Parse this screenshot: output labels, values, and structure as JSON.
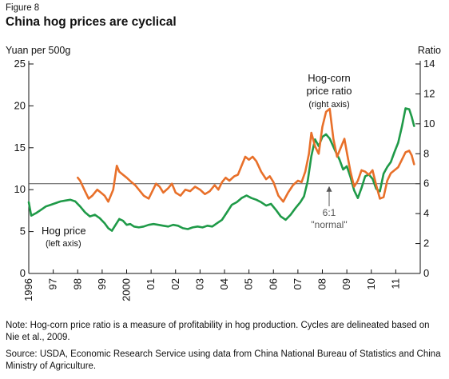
{
  "figure_label": "Figure 8",
  "title": "China hog prices are cyclical",
  "note": "Note: Hog-corn price ratio is a measure of profitability in hog production. Cycles are delineated based on Nie et al., 2009.",
  "source": "Source: USDA, Economic Research Service using data from China National Bureau of Statistics and China Ministry of Agriculture.",
  "colors": {
    "hog": "#1f9a48",
    "ratio": "#e8702a",
    "axis": "#111111",
    "ref": "#555555",
    "annotation": "#555555"
  },
  "chart_data": {
    "type": "line",
    "title": "China hog prices are cyclical",
    "ylabel_left": "Yuan per 500g",
    "ylabel_right": "Ratio",
    "ylim_left": [
      0,
      25
    ],
    "ylim_right": [
      0,
      14
    ],
    "yticks_left": [
      0,
      5,
      10,
      15,
      20,
      25
    ],
    "yticks_right": [
      0,
      2,
      4,
      6,
      8,
      10,
      12,
      14
    ],
    "xlim": [
      1996,
      2012
    ],
    "xticks": [
      {
        "x": 1996,
        "label": "1996"
      },
      {
        "x": 1997,
        "label": "97"
      },
      {
        "x": 1998,
        "label": "98"
      },
      {
        "x": 1999,
        "label": "99"
      },
      {
        "x": 2000,
        "label": "2000"
      },
      {
        "x": 2001,
        "label": "01"
      },
      {
        "x": 2002,
        "label": "02"
      },
      {
        "x": 2003,
        "label": "03"
      },
      {
        "x": 2004,
        "label": "04"
      },
      {
        "x": 2005,
        "label": "05"
      },
      {
        "x": 2006,
        "label": "06"
      },
      {
        "x": 2007,
        "label": "07"
      },
      {
        "x": 2008,
        "label": "08"
      },
      {
        "x": 2009,
        "label": "09"
      },
      {
        "x": 2010,
        "label": "10"
      },
      {
        "x": 2011,
        "label": "11"
      }
    ],
    "reference_line": {
      "axis": "right",
      "value": 6,
      "label": "6:1",
      "sublabel": "\"normal\""
    },
    "annotations": {
      "hog_label": "Hog price",
      "hog_sublabel": "(left axis)",
      "ratio_label_1": "Hog-corn",
      "ratio_label_2": "price ratio",
      "ratio_sublabel": "(right axis)"
    },
    "series": [
      {
        "name": "Hog price",
        "axis": "left",
        "points": [
          [
            1996.0,
            8.5
          ],
          [
            1996.1,
            6.9
          ],
          [
            1996.3,
            7.2
          ],
          [
            1996.5,
            7.6
          ],
          [
            1996.7,
            8.0
          ],
          [
            1996.9,
            8.2
          ],
          [
            1997.1,
            8.4
          ],
          [
            1997.3,
            8.6
          ],
          [
            1997.5,
            8.7
          ],
          [
            1997.7,
            8.8
          ],
          [
            1997.9,
            8.6
          ],
          [
            1998.1,
            8.0
          ],
          [
            1998.3,
            7.3
          ],
          [
            1998.5,
            6.8
          ],
          [
            1998.7,
            7.0
          ],
          [
            1998.9,
            6.6
          ],
          [
            1999.1,
            6.0
          ],
          [
            1999.25,
            5.4
          ],
          [
            1999.4,
            5.1
          ],
          [
            1999.55,
            5.8
          ],
          [
            1999.7,
            6.5
          ],
          [
            1999.85,
            6.3
          ],
          [
            2000.0,
            5.8
          ],
          [
            2000.15,
            5.9
          ],
          [
            2000.3,
            5.6
          ],
          [
            2000.5,
            5.5
          ],
          [
            2000.7,
            5.6
          ],
          [
            2000.9,
            5.8
          ],
          [
            2001.1,
            5.9
          ],
          [
            2001.3,
            5.8
          ],
          [
            2001.5,
            5.7
          ],
          [
            2001.7,
            5.6
          ],
          [
            2001.9,
            5.8
          ],
          [
            2002.1,
            5.7
          ],
          [
            2002.3,
            5.4
          ],
          [
            2002.5,
            5.3
          ],
          [
            2002.7,
            5.5
          ],
          [
            2002.9,
            5.6
          ],
          [
            2003.1,
            5.5
          ],
          [
            2003.3,
            5.7
          ],
          [
            2003.5,
            5.6
          ],
          [
            2003.7,
            6.0
          ],
          [
            2003.9,
            6.4
          ],
          [
            2004.1,
            7.3
          ],
          [
            2004.3,
            8.2
          ],
          [
            2004.5,
            8.5
          ],
          [
            2004.7,
            9.0
          ],
          [
            2004.9,
            9.3
          ],
          [
            2005.1,
            9.0
          ],
          [
            2005.3,
            8.8
          ],
          [
            2005.5,
            8.5
          ],
          [
            2005.7,
            8.1
          ],
          [
            2005.9,
            8.3
          ],
          [
            2006.1,
            7.6
          ],
          [
            2006.3,
            6.8
          ],
          [
            2006.5,
            6.4
          ],
          [
            2006.7,
            7.0
          ],
          [
            2006.9,
            7.8
          ],
          [
            2007.1,
            8.5
          ],
          [
            2007.25,
            9.2
          ],
          [
            2007.4,
            11.0
          ],
          [
            2007.55,
            14.0
          ],
          [
            2007.7,
            16.0
          ],
          [
            2007.85,
            15.2
          ],
          [
            2008.0,
            16.3
          ],
          [
            2008.15,
            16.6
          ],
          [
            2008.3,
            16.1
          ],
          [
            2008.5,
            14.8
          ],
          [
            2008.7,
            13.6
          ],
          [
            2008.85,
            12.4
          ],
          [
            2009.0,
            12.8
          ],
          [
            2009.15,
            11.5
          ],
          [
            2009.3,
            9.9
          ],
          [
            2009.45,
            9.0
          ],
          [
            2009.6,
            10.2
          ],
          [
            2009.75,
            11.6
          ],
          [
            2009.9,
            11.8
          ],
          [
            2010.05,
            11.3
          ],
          [
            2010.2,
            10.1
          ],
          [
            2010.35,
            9.8
          ],
          [
            2010.5,
            11.9
          ],
          [
            2010.65,
            12.7
          ],
          [
            2010.8,
            13.3
          ],
          [
            2010.95,
            14.5
          ],
          [
            2011.1,
            15.6
          ],
          [
            2011.25,
            17.5
          ],
          [
            2011.4,
            19.7
          ],
          [
            2011.55,
            19.6
          ],
          [
            2011.65,
            18.7
          ],
          [
            2011.75,
            17.6
          ]
        ]
      },
      {
        "name": "Hog-corn price ratio",
        "axis": "right",
        "points": [
          [
            1998.0,
            6.4
          ],
          [
            1998.1,
            6.2
          ],
          [
            1998.3,
            5.5
          ],
          [
            1998.45,
            5.0
          ],
          [
            1998.6,
            5.2
          ],
          [
            1998.8,
            5.6
          ],
          [
            1998.95,
            5.4
          ],
          [
            1999.1,
            5.2
          ],
          [
            1999.25,
            4.8
          ],
          [
            1999.45,
            5.6
          ],
          [
            1999.6,
            7.2
          ],
          [
            1999.7,
            6.8
          ],
          [
            1999.85,
            6.6
          ],
          [
            2000.0,
            6.4
          ],
          [
            2000.2,
            6.1
          ],
          [
            2000.35,
            5.9
          ],
          [
            2000.5,
            5.6
          ],
          [
            2000.7,
            5.2
          ],
          [
            2000.9,
            5.0
          ],
          [
            2001.05,
            5.5
          ],
          [
            2001.2,
            6.0
          ],
          [
            2001.35,
            5.8
          ],
          [
            2001.5,
            5.4
          ],
          [
            2001.7,
            5.7
          ],
          [
            2001.85,
            6.0
          ],
          [
            2002.0,
            5.4
          ],
          [
            2002.2,
            5.2
          ],
          [
            2002.4,
            5.6
          ],
          [
            2002.6,
            5.5
          ],
          [
            2002.8,
            5.8
          ],
          [
            2003.0,
            5.6
          ],
          [
            2003.2,
            5.3
          ],
          [
            2003.4,
            5.5
          ],
          [
            2003.6,
            5.9
          ],
          [
            2003.75,
            5.6
          ],
          [
            2003.9,
            6.1
          ],
          [
            2004.05,
            6.4
          ],
          [
            2004.2,
            6.2
          ],
          [
            2004.4,
            6.5
          ],
          [
            2004.55,
            6.6
          ],
          [
            2004.7,
            7.2
          ],
          [
            2004.85,
            7.8
          ],
          [
            2005.0,
            7.6
          ],
          [
            2005.15,
            7.8
          ],
          [
            2005.3,
            7.5
          ],
          [
            2005.5,
            6.8
          ],
          [
            2005.7,
            6.3
          ],
          [
            2005.85,
            6.5
          ],
          [
            2006.0,
            6.1
          ],
          [
            2006.2,
            5.2
          ],
          [
            2006.4,
            4.8
          ],
          [
            2006.6,
            5.4
          ],
          [
            2006.8,
            5.9
          ],
          [
            2007.0,
            6.2
          ],
          [
            2007.15,
            6.1
          ],
          [
            2007.3,
            6.8
          ],
          [
            2007.45,
            8.0
          ],
          [
            2007.55,
            9.4
          ],
          [
            2007.7,
            8.5
          ],
          [
            2007.85,
            8.0
          ],
          [
            2008.0,
            9.8
          ],
          [
            2008.15,
            10.8
          ],
          [
            2008.3,
            11.0
          ],
          [
            2008.45,
            9.0
          ],
          [
            2008.6,
            7.8
          ],
          [
            2008.75,
            8.4
          ],
          [
            2008.9,
            9.0
          ],
          [
            2009.0,
            8.1
          ],
          [
            2009.15,
            6.8
          ],
          [
            2009.3,
            5.8
          ],
          [
            2009.45,
            6.2
          ],
          [
            2009.6,
            6.9
          ],
          [
            2009.75,
            6.8
          ],
          [
            2009.9,
            6.6
          ],
          [
            2010.05,
            6.9
          ],
          [
            2010.2,
            5.9
          ],
          [
            2010.35,
            5.0
          ],
          [
            2010.5,
            5.1
          ],
          [
            2010.65,
            6.2
          ],
          [
            2010.8,
            6.7
          ],
          [
            2010.95,
            6.9
          ],
          [
            2011.1,
            7.1
          ],
          [
            2011.25,
            7.6
          ],
          [
            2011.4,
            8.1
          ],
          [
            2011.55,
            8.2
          ],
          [
            2011.65,
            7.9
          ],
          [
            2011.75,
            7.3
          ]
        ]
      }
    ]
  }
}
